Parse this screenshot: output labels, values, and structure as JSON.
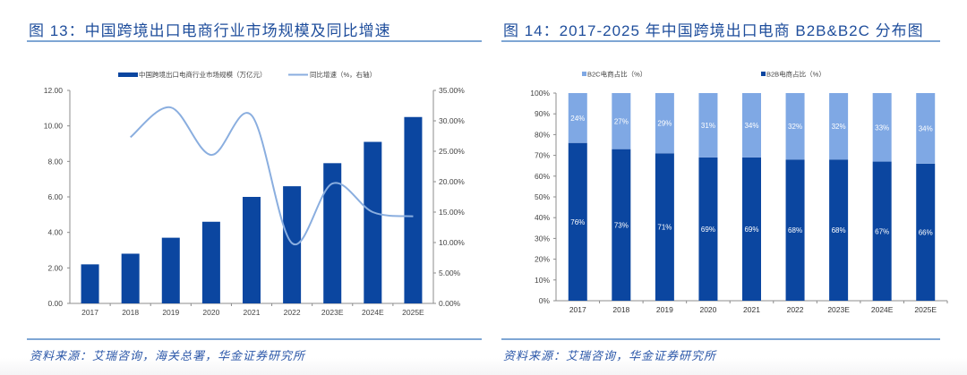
{
  "colors": {
    "bar_dark": "#0b46a0",
    "bar_light": "#7fa8e4",
    "line": "#8aaedf",
    "title": "#1f4e9c",
    "rule": "#7ea6d4"
  },
  "left_panel": {
    "title": "图 13：中国跨境出口电商行业市场规模及同比增速",
    "source": "资料来源：艾瑞咨询，海关总署，华金证券研究所"
  },
  "right_panel": {
    "title": "图 14：2017-2025 年中国跨境出口电商 B2B&B2C 分布图",
    "source": "资料来源：艾瑞咨询，华金证券研究所"
  },
  "chart_data": [
    {
      "type": "bar",
      "title": "图 13：中国跨境出口电商行业市场规模及同比增速",
      "categories": [
        "2017",
        "2018",
        "2019",
        "2020",
        "2021",
        "2022",
        "2023E",
        "2024E",
        "2025E"
      ],
      "series": [
        {
          "name": "中国跨境出口电商行业市场规模（万亿元）",
          "type": "bar",
          "axis": "left",
          "values": [
            2.2,
            2.8,
            3.7,
            4.6,
            6.0,
            6.6,
            7.9,
            9.1,
            10.5
          ]
        },
        {
          "name": "同比增速（%，右轴）",
          "type": "line",
          "axis": "right",
          "values": [
            null,
            27.3,
            32.2,
            24.4,
            30.9,
            9.9,
            19.7,
            15.0,
            14.3
          ]
        }
      ],
      "ylim": [
        0,
        12
      ],
      "yticks": [
        "0.00",
        "2.00",
        "4.00",
        "6.00",
        "8.00",
        "10.00",
        "12.00"
      ],
      "y2lim": [
        0,
        35
      ],
      "y2ticks": [
        "0.00%",
        "5.00%",
        "10.00%",
        "15.00%",
        "20.00%",
        "25.00%",
        "30.00%",
        "35.00%"
      ],
      "legend": "top",
      "grid": false
    },
    {
      "type": "bar",
      "stacked": true,
      "title": "图 14：2017-2025 年中国跨境出口电商 B2B&B2C 分布图",
      "categories": [
        "2017",
        "2018",
        "2019",
        "2020",
        "2021",
        "2022",
        "2023E",
        "2024E",
        "2025E"
      ],
      "series": [
        {
          "name": "B2B电商占比（%）",
          "values": [
            76,
            73,
            71,
            69,
            69,
            68,
            68,
            67,
            66
          ],
          "labels": [
            "76%",
            "73%",
            "71%",
            "69%",
            "69%",
            "68%",
            "68%",
            "67%",
            "66%"
          ]
        },
        {
          "name": "B2C电商占比（%）",
          "values": [
            24,
            27,
            29,
            31,
            34,
            32,
            32,
            33,
            34
          ],
          "labels": [
            "24%",
            "27%",
            "29%",
            "31%",
            "34%",
            "32%",
            "32%",
            "33%",
            "34%"
          ]
        }
      ],
      "legend_order": [
        "B2C电商占比（%）",
        "B2B电商占比（%）"
      ],
      "ylim": [
        0,
        100
      ],
      "yticks": [
        "0%",
        "10%",
        "20%",
        "30%",
        "40%",
        "50%",
        "60%",
        "70%",
        "80%",
        "90%",
        "100%"
      ],
      "legend": "top",
      "grid": false
    }
  ]
}
